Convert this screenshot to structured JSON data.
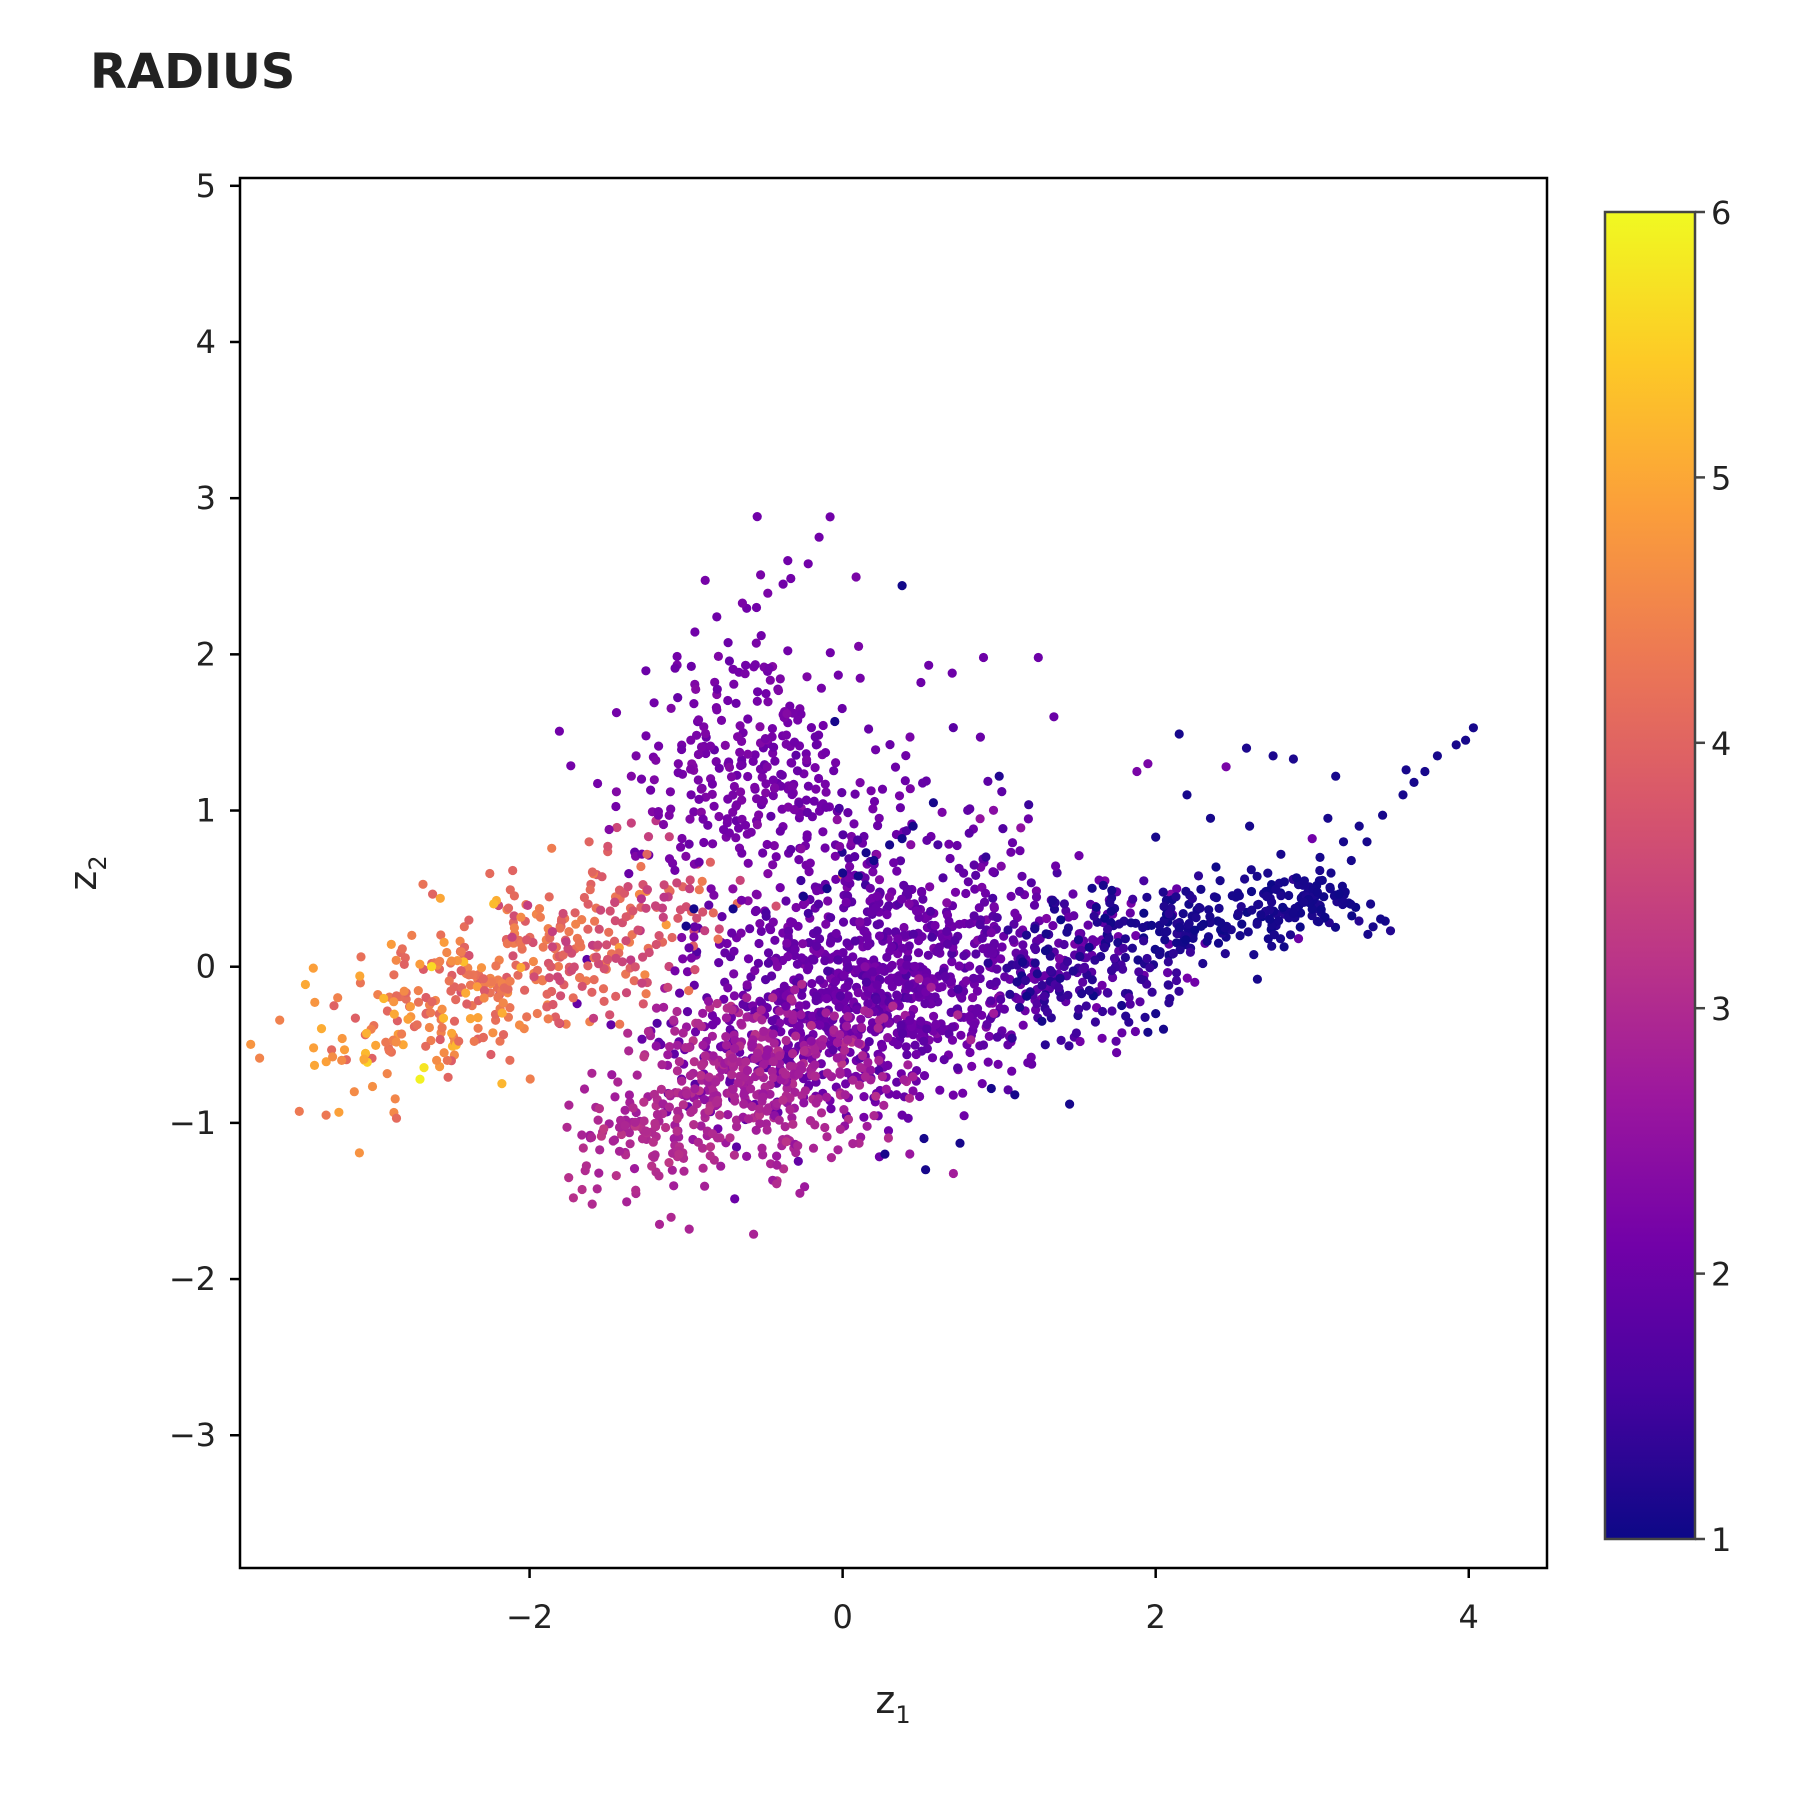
{
  "chart_data": {
    "type": "scatter",
    "title": "RADIUS",
    "xlabel": "z",
    "xlabel_sub": "1",
    "ylabel": "z",
    "ylabel_sub": "2",
    "xlim": [
      -3.85,
      4.5
    ],
    "ylim": [
      -3.85,
      5.05
    ],
    "xticks": [
      -2,
      0,
      2,
      4
    ],
    "xtick_labels": [
      "−2",
      "0",
      "2",
      "4"
    ],
    "yticks": [
      -3,
      -2,
      -1,
      0,
      1,
      2,
      3,
      4,
      5
    ],
    "ytick_labels": [
      "−3",
      "−2",
      "−1",
      "0",
      "1",
      "2",
      "3",
      "4",
      "5"
    ],
    "colorbar": {
      "range": [
        1,
        6
      ],
      "ticks": [
        1,
        2,
        3,
        4,
        5,
        6
      ],
      "tick_labels": [
        "1",
        "2",
        "3",
        "4",
        "5",
        "6"
      ],
      "colorscale": "plasma",
      "colors": [
        "#0d0887",
        "#46039f",
        "#7201a8",
        "#9c179e",
        "#bd3786",
        "#d8576b",
        "#ed7953",
        "#fb9f3a",
        "#fdca26",
        "#f0f921"
      ]
    },
    "grid": false,
    "clusters": [
      {
        "cx": 0.1,
        "cy": -0.2,
        "sx": 0.55,
        "sy": 0.35,
        "rot": 0.25,
        "n": 700,
        "c": 2.05,
        "cs": 0.12
      },
      {
        "cx": 0.9,
        "cy": 0.05,
        "sx": 0.6,
        "sy": 0.3,
        "rot": 0.2,
        "n": 300,
        "c": 1.9,
        "cs": 0.15
      },
      {
        "cx": -0.5,
        "cy": -0.7,
        "sx": 0.45,
        "sy": 0.25,
        "rot": 0.1,
        "n": 420,
        "c": 2.85,
        "cs": 0.15
      },
      {
        "cx": -1.2,
        "cy": -1.1,
        "sx": 0.28,
        "sy": 0.2,
        "rot": 0.3,
        "n": 100,
        "c": 3.0,
        "cs": 0.12
      },
      {
        "cx": -2.0,
        "cy": 0.0,
        "sx": 0.55,
        "sy": 0.25,
        "rot": 0.35,
        "n": 260,
        "c": 4.15,
        "cs": 0.25
      },
      {
        "cx": -2.7,
        "cy": -0.3,
        "sx": 0.4,
        "sy": 0.25,
        "rot": 0.4,
        "n": 90,
        "c": 4.75,
        "cs": 0.3
      },
      {
        "cx": -1.4,
        "cy": 0.2,
        "sx": 0.35,
        "sy": 0.25,
        "rot": 0.3,
        "n": 90,
        "c": 3.6,
        "cs": 0.2
      },
      {
        "cx": -0.6,
        "cy": 1.5,
        "sx": 0.3,
        "sy": 0.35,
        "rot": 0.0,
        "n": 160,
        "c": 2.15,
        "cs": 0.1
      },
      {
        "cx": -0.9,
        "cy": 0.9,
        "sx": 0.35,
        "sy": 0.3,
        "rot": 0.2,
        "n": 90,
        "c": 2.2,
        "cs": 0.1
      },
      {
        "cx": -0.15,
        "cy": 1.15,
        "sx": 0.25,
        "sy": 0.2,
        "rot": 0.0,
        "n": 60,
        "c": 2.1,
        "cs": 0.1
      },
      {
        "cx": 2.4,
        "cy": 0.3,
        "sx": 0.45,
        "sy": 0.12,
        "rot": 0.05,
        "n": 180,
        "c": 1.12,
        "cs": 0.08
      },
      {
        "cx": 2.95,
        "cy": 0.45,
        "sx": 0.15,
        "sy": 0.08,
        "rot": 0.0,
        "n": 60,
        "c": 1.1,
        "cs": 0.05
      },
      {
        "cx": 1.6,
        "cy": -0.05,
        "sx": 0.35,
        "sy": 0.2,
        "rot": 0.1,
        "n": 120,
        "c": 1.35,
        "cs": 0.15
      },
      {
        "cx": 0.3,
        "cy": 0.6,
        "sx": 0.5,
        "sy": 0.3,
        "rot": 0.3,
        "n": 140,
        "c": 2.0,
        "cs": 0.25
      }
    ],
    "points": [
      [
        -0.08,
        2.88,
        2.1
      ],
      [
        -0.15,
        2.75,
        2.1
      ],
      [
        -0.35,
        2.6,
        2.1
      ],
      [
        -0.22,
        2.58,
        2.1
      ],
      [
        -0.38,
        2.45,
        2.1
      ],
      [
        0.38,
        2.44,
        1.05
      ],
      [
        -0.55,
        2.3,
        2.1
      ],
      [
        -0.52,
        2.12,
        2.1
      ],
      [
        -0.62,
        1.93,
        2.1
      ],
      [
        0.9,
        1.98,
        2.05
      ],
      [
        1.25,
        1.98,
        2.05
      ],
      [
        0.55,
        1.93,
        2.05
      ],
      [
        0.7,
        1.88,
        2.05
      ],
      [
        0.5,
        1.82,
        2.05
      ],
      [
        1.35,
        1.6,
        2.0
      ],
      [
        2.15,
        1.49,
        1.1
      ],
      [
        0.88,
        1.47,
        2.0
      ],
      [
        2.58,
        1.4,
        1.15
      ],
      [
        2.75,
        1.35,
        1.15
      ],
      [
        2.88,
        1.33,
        1.15
      ],
      [
        3.15,
        1.22,
        1.1
      ],
      [
        3.6,
        1.26,
        1.1
      ],
      [
        3.72,
        1.25,
        1.1
      ],
      [
        3.98,
        1.45,
        1.1
      ],
      [
        4.03,
        1.53,
        1.1
      ],
      [
        3.92,
        1.42,
        1.1
      ],
      [
        3.8,
        1.35,
        1.1
      ],
      [
        3.65,
        1.18,
        1.1
      ],
      [
        3.58,
        1.1,
        1.1
      ],
      [
        3.45,
        0.97,
        1.1
      ],
      [
        3.3,
        0.9,
        1.1
      ],
      [
        3.2,
        0.8,
        1.1
      ],
      [
        3.1,
        0.95,
        1.1
      ],
      [
        3.05,
        0.7,
        1.1
      ],
      [
        2.95,
        0.55,
        1.1
      ],
      [
        2.8,
        0.72,
        1.1
      ],
      [
        2.6,
        0.9,
        1.1
      ],
      [
        2.35,
        0.95,
        1.1
      ],
      [
        1.0,
        1.22,
        1.2
      ],
      [
        1.95,
        1.3,
        2.2
      ],
      [
        1.88,
        1.25,
        2.2
      ],
      [
        2.2,
        1.1,
        1.1
      ],
      [
        2.45,
        1.28,
        2.2
      ],
      [
        2.0,
        0.83,
        1.1
      ],
      [
        3.0,
        0.82,
        2.1
      ],
      [
        3.12,
        0.6,
        1.1
      ],
      [
        3.25,
        0.68,
        1.1
      ],
      [
        3.35,
        0.8,
        1.1
      ],
      [
        2.15,
        0.25,
        1.1
      ],
      [
        2.65,
        -0.08,
        1.1
      ],
      [
        2.25,
        -0.1,
        2.1
      ],
      [
        2.05,
        -0.4,
        1.1
      ],
      [
        2.0,
        -0.3,
        1.1
      ],
      [
        1.95,
        -0.42,
        1.1
      ],
      [
        1.75,
        -0.55,
        2.0
      ],
      [
        1.45,
        -0.88,
        1.1
      ],
      [
        1.1,
        -0.82,
        1.1
      ],
      [
        0.95,
        -0.78,
        1.1
      ],
      [
        0.75,
        -1.13,
        1.1
      ],
      [
        0.52,
        -1.1,
        1.1
      ],
      [
        0.53,
        -1.3,
        1.1
      ],
      [
        0.27,
        -1.2,
        1.1
      ],
      [
        0.38,
        -0.95,
        2.0
      ],
      [
        -0.42,
        -1.27,
        2.8
      ],
      [
        -0.98,
        -1.68,
        2.9
      ],
      [
        -1.17,
        -1.65,
        2.9
      ],
      [
        -1.72,
        -1.48,
        3.1
      ],
      [
        -1.75,
        -1.35,
        3.1
      ],
      [
        -1.6,
        -1.52,
        3.0
      ],
      [
        -2.85,
        -0.97,
        4.1
      ],
      [
        -3.3,
        -0.95,
        4.3
      ],
      [
        -3.12,
        -0.8,
        4.6
      ],
      [
        -3.38,
        -0.52,
        4.9
      ],
      [
        -2.7,
        -0.72,
        5.9
      ],
      [
        -3.2,
        -0.6,
        4.6
      ],
      [
        -1.62,
        0.8,
        4.0
      ],
      [
        -1.5,
        0.77,
        3.7
      ],
      [
        -1.25,
        0.72,
        4.0
      ],
      [
        -1.35,
        0.92,
        3.4
      ],
      [
        -1.35,
        1.22,
        2.3
      ],
      [
        -1.1,
        1.12,
        2.2
      ],
      [
        -1.05,
        1.3,
        2.2
      ],
      [
        -0.97,
        1.45,
        2.2
      ],
      [
        -0.92,
        1.58,
        2.2
      ],
      [
        0.1,
        0.58,
        1.1
      ],
      [
        0.2,
        0.68,
        1.1
      ],
      [
        0.3,
        0.78,
        1.1
      ],
      [
        0.38,
        0.82,
        1.1
      ],
      [
        0.45,
        0.9,
        1.1
      ],
      [
        0.0,
        0.6,
        1.1
      ],
      [
        -0.1,
        0.5,
        1.1
      ],
      [
        -0.25,
        0.45,
        1.1
      ],
      [
        0.15,
        0.73,
        1.1
      ],
      [
        -0.05,
        1.57,
        1.1
      ],
      [
        -0.7,
        0.37,
        1.1
      ],
      [
        -0.95,
        0.37,
        1.1
      ],
      [
        0.58,
        1.05,
        1.1
      ],
      [
        -1.0,
        0.26,
        1.1
      ],
      [
        1.15,
        0.03,
        1.1
      ],
      [
        1.3,
        0.21,
        1.1
      ]
    ]
  }
}
